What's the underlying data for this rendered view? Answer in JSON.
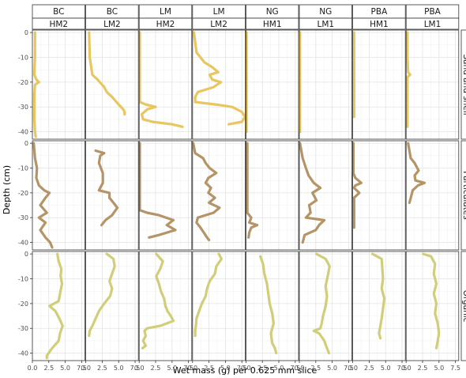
{
  "chart_data": {
    "type": "line",
    "xlabel": "Wet mass (g) per 0.625 mm slice",
    "ylabel": "Depth (cm)",
    "xlim": [
      0,
      8
    ],
    "ylim": [
      -43,
      1
    ],
    "x_ticks": [
      "0.0",
      "2.5",
      "5.0",
      "7.5"
    ],
    "y_ticks": [
      "0",
      "-10",
      "-20",
      "-30",
      "-40"
    ],
    "grid": true,
    "facet_columns": [
      {
        "site": "BC",
        "core": "HM2"
      },
      {
        "site": "BC",
        "core": "LM2"
      },
      {
        "site": "LM",
        "core": "HM2"
      },
      {
        "site": "LM",
        "core": "LM2"
      },
      {
        "site": "NG",
        "core": "HM1"
      },
      {
        "site": "NG",
        "core": "LM1"
      },
      {
        "site": "PBA",
        "core": "HM1"
      },
      {
        "site": "PBA",
        "core": "LM1"
      }
    ],
    "facet_rows": [
      {
        "label": "Sand and shell",
        "color": "#e8c660"
      },
      {
        "label": "Particulates",
        "color": "#b59467"
      },
      {
        "label": "Organic",
        "color": "#d1ce79"
      }
    ],
    "series": [
      [
        [
          [
            0,
            0.4
          ],
          [
            -10,
            0.4
          ],
          [
            -17,
            0.3
          ],
          [
            -19,
            0.6
          ],
          [
            -20,
            1.0
          ],
          [
            -21,
            0.4
          ],
          [
            -25,
            0.3
          ],
          [
            -35,
            0.3
          ],
          [
            -40,
            0.4
          ],
          [
            -42,
            0.5
          ]
        ],
        [
          [
            0,
            0.5
          ],
          [
            -10,
            0.6
          ],
          [
            -17,
            1.0
          ],
          [
            -19,
            1.8
          ],
          [
            -22,
            2.8
          ],
          [
            -24,
            3.2
          ],
          [
            -26,
            4.0
          ],
          [
            -29,
            5.0
          ],
          [
            -31,
            5.7
          ],
          [
            -32,
            5.9
          ],
          [
            -33,
            5.9
          ]
        ],
        [
          [
            0,
            0.1
          ],
          [
            -10,
            0.1
          ],
          [
            -20,
            0.1
          ],
          [
            -28,
            0.1
          ],
          [
            -29,
            1.0
          ],
          [
            -30,
            2.5
          ],
          [
            -31,
            1.2
          ],
          [
            -33,
            0.4
          ],
          [
            -35,
            0.6
          ],
          [
            -36,
            2.0
          ],
          [
            -37,
            5.0
          ],
          [
            -38,
            6.6
          ]
        ],
        [
          [
            0,
            0.2
          ],
          [
            -8,
            0.6
          ],
          [
            -12,
            1.8
          ],
          [
            -14,
            3.0
          ],
          [
            -16,
            3.9
          ],
          [
            -17,
            2.6
          ],
          [
            -19,
            3.0
          ],
          [
            -20,
            4.3
          ],
          [
            -22,
            3.2
          ],
          [
            -24,
            0.8
          ],
          [
            -26,
            0.4
          ],
          [
            -28,
            0.4
          ],
          [
            -29,
            3.5
          ],
          [
            -30,
            6.0
          ],
          [
            -32,
            7.5
          ],
          [
            -34,
            8.0
          ],
          [
            -36,
            7.5
          ],
          [
            -37,
            5.5
          ]
        ],
        [
          [
            0,
            0.1
          ],
          [
            -20,
            0.1
          ],
          [
            -40,
            0.1
          ]
        ],
        [
          [
            0,
            0.1
          ],
          [
            -20,
            0.1
          ],
          [
            -40,
            0.1
          ]
        ],
        [
          [
            0,
            0.2
          ],
          [
            -20,
            0.2
          ],
          [
            -34,
            0.2
          ]
        ],
        [
          [
            0,
            0.2
          ],
          [
            -10,
            0.2
          ],
          [
            -16,
            0.3
          ],
          [
            -17,
            0.6
          ],
          [
            -18,
            0.2
          ],
          [
            -38,
            0.2
          ]
        ]
      ],
      [
        [
          [
            0,
            0.2
          ],
          [
            -6,
            0.4
          ],
          [
            -10,
            0.7
          ],
          [
            -14,
            0.6
          ],
          [
            -17,
            1.0
          ],
          [
            -19,
            1.8
          ],
          [
            -20,
            2.6
          ],
          [
            -22,
            2.0
          ],
          [
            -25,
            1.2
          ],
          [
            -28,
            2.2
          ],
          [
            -30,
            1.0
          ],
          [
            -32,
            2.0
          ],
          [
            -35,
            1.2
          ],
          [
            -38,
            2.0
          ],
          [
            -40,
            2.7
          ],
          [
            -42,
            3.0
          ]
        ],
        [
          [
            -3,
            1.5
          ],
          [
            -4,
            2.8
          ],
          [
            -5,
            2.2
          ],
          [
            -8,
            2.0
          ],
          [
            -12,
            2.6
          ],
          [
            -16,
            2.6
          ],
          [
            -19,
            2.0
          ],
          [
            -20,
            3.6
          ],
          [
            -22,
            3.6
          ],
          [
            -24,
            4.2
          ],
          [
            -26,
            4.8
          ],
          [
            -29,
            4.0
          ],
          [
            -31,
            3.0
          ],
          [
            -33,
            2.4
          ]
        ],
        [
          [
            0,
            0.1
          ],
          [
            -10,
            0.1
          ],
          [
            -27,
            0.1
          ],
          [
            -28,
            1.2
          ],
          [
            -29,
            3.0
          ],
          [
            -31,
            5.2
          ],
          [
            -33,
            4.2
          ],
          [
            -35,
            5.5
          ],
          [
            -37,
            3.0
          ],
          [
            -38,
            1.5
          ]
        ],
        [
          [
            0,
            0.1
          ],
          [
            -4,
            0.4
          ],
          [
            -6,
            1.6
          ],
          [
            -8,
            2.0
          ],
          [
            -10,
            2.6
          ],
          [
            -12,
            3.6
          ],
          [
            -14,
            2.4
          ],
          [
            -16,
            2.0
          ],
          [
            -18,
            2.8
          ],
          [
            -20,
            2.4
          ],
          [
            -22,
            3.4
          ],
          [
            -24,
            2.5
          ],
          [
            -26,
            4.1
          ],
          [
            -28,
            3.2
          ],
          [
            -30,
            0.8
          ],
          [
            -32,
            0.6
          ],
          [
            -34,
            1.2
          ],
          [
            -36,
            1.7
          ],
          [
            -38,
            2.2
          ],
          [
            -39,
            2.5
          ]
        ],
        [
          [
            0,
            0.2
          ],
          [
            -10,
            0.2
          ],
          [
            -28,
            0.2
          ],
          [
            -30,
            0.8
          ],
          [
            -32,
            0.5
          ],
          [
            -33,
            1.7
          ],
          [
            -34,
            0.8
          ],
          [
            -36,
            0.5
          ],
          [
            -38,
            0.4
          ]
        ],
        [
          [
            0,
            0.1
          ],
          [
            -6,
            0.5
          ],
          [
            -10,
            1.0
          ],
          [
            -13,
            1.4
          ],
          [
            -16,
            2.2
          ],
          [
            -18,
            3.2
          ],
          [
            -20,
            2.0
          ],
          [
            -23,
            2.6
          ],
          [
            -25,
            1.5
          ],
          [
            -28,
            1.7
          ],
          [
            -30,
            1.0
          ],
          [
            -31,
            3.8
          ],
          [
            -33,
            3.0
          ],
          [
            -35,
            2.5
          ],
          [
            -37,
            0.8
          ],
          [
            -40,
            0.5
          ]
        ],
        [
          [
            0,
            0.1
          ],
          [
            -12,
            0.1
          ],
          [
            -14,
            0.4
          ],
          [
            -16,
            1.3
          ],
          [
            -17,
            0.4
          ],
          [
            -18,
            0.2
          ],
          [
            -20,
            1.0
          ],
          [
            -22,
            0.2
          ],
          [
            -34,
            0.2
          ]
        ],
        [
          [
            0,
            0.3
          ],
          [
            -6,
            0.7
          ],
          [
            -8,
            1.3
          ],
          [
            -11,
            1.9
          ],
          [
            -13,
            1.3
          ],
          [
            -15,
            1.4
          ],
          [
            -16,
            2.8
          ],
          [
            -17,
            1.8
          ],
          [
            -19,
            1.0
          ],
          [
            -21,
            0.8
          ],
          [
            -24,
            0.5
          ]
        ]
      ],
      [
        [
          [
            0,
            3.8
          ],
          [
            -3,
            4.0
          ],
          [
            -6,
            4.4
          ],
          [
            -9,
            4.3
          ],
          [
            -12,
            4.5
          ],
          [
            -16,
            4.2
          ],
          [
            -19,
            4.0
          ],
          [
            -21,
            2.6
          ],
          [
            -23,
            3.5
          ],
          [
            -26,
            4.1
          ],
          [
            -29,
            4.6
          ],
          [
            -32,
            4.2
          ],
          [
            -35,
            4.0
          ],
          [
            -38,
            3.0
          ],
          [
            -41,
            2.2
          ],
          [
            -42,
            2.2
          ]
        ],
        [
          [
            0,
            3.2
          ],
          [
            -2,
            4.2
          ],
          [
            -5,
            4.4
          ],
          [
            -8,
            4.0
          ],
          [
            -11,
            3.6
          ],
          [
            -14,
            4.0
          ],
          [
            -17,
            3.7
          ],
          [
            -20,
            2.8
          ],
          [
            -23,
            2.0
          ],
          [
            -26,
            1.5
          ],
          [
            -29,
            1.0
          ],
          [
            -31,
            0.6
          ],
          [
            -33,
            0.5
          ]
        ],
        [
          [
            0,
            2.6
          ],
          [
            -3,
            3.6
          ],
          [
            -6,
            3.2
          ],
          [
            -9,
            2.6
          ],
          [
            -12,
            3.0
          ],
          [
            -15,
            3.3
          ],
          [
            -18,
            3.8
          ],
          [
            -21,
            4.0
          ],
          [
            -23,
            4.3
          ],
          [
            -25,
            4.8
          ],
          [
            -27,
            5.2
          ],
          [
            -29,
            3.2
          ],
          [
            -30,
            1.2
          ],
          [
            -31,
            0.8
          ],
          [
            -33,
            1.0
          ],
          [
            -35,
            0.6
          ],
          [
            -37,
            1.0
          ],
          [
            -38,
            0.5
          ]
        ],
        [
          [
            0,
            4.0
          ],
          [
            -2,
            4.4
          ],
          [
            -5,
            3.6
          ],
          [
            -8,
            3.4
          ],
          [
            -11,
            2.6
          ],
          [
            -14,
            2.2
          ],
          [
            -17,
            2.0
          ],
          [
            -20,
            1.4
          ],
          [
            -23,
            1.0
          ],
          [
            -26,
            0.6
          ],
          [
            -29,
            0.5
          ],
          [
            -31,
            0.4
          ],
          [
            -33,
            0.4
          ]
        ],
        [
          [
            -1,
            2.2
          ],
          [
            -4,
            2.6
          ],
          [
            -8,
            2.8
          ],
          [
            -12,
            3.2
          ],
          [
            -16,
            3.4
          ],
          [
            -20,
            3.6
          ],
          [
            -24,
            4.0
          ],
          [
            -28,
            4.2
          ],
          [
            -32,
            3.8
          ],
          [
            -36,
            4.0
          ],
          [
            -38,
            4.4
          ],
          [
            -40,
            4.6
          ]
        ],
        [
          [
            0,
            2.6
          ],
          [
            -2,
            4.0
          ],
          [
            -5,
            4.6
          ],
          [
            -9,
            4.3
          ],
          [
            -13,
            4.0
          ],
          [
            -17,
            4.2
          ],
          [
            -21,
            4.0
          ],
          [
            -25,
            3.6
          ],
          [
            -28,
            3.4
          ],
          [
            -30,
            3.2
          ],
          [
            -31,
            2.2
          ],
          [
            -32,
            3.0
          ],
          [
            -35,
            3.8
          ],
          [
            -38,
            4.2
          ],
          [
            -40,
            4.5
          ]
        ],
        [
          [
            0,
            3.0
          ],
          [
            -2,
            4.4
          ],
          [
            -6,
            4.5
          ],
          [
            -10,
            4.6
          ],
          [
            -14,
            4.4
          ],
          [
            -18,
            4.8
          ],
          [
            -22,
            4.6
          ],
          [
            -26,
            4.4
          ],
          [
            -29,
            4.2
          ],
          [
            -32,
            4.0
          ],
          [
            -34,
            4.2
          ]
        ],
        [
          [
            0,
            2.6
          ],
          [
            -1,
            3.8
          ],
          [
            -4,
            4.4
          ],
          [
            -8,
            4.2
          ],
          [
            -12,
            4.6
          ],
          [
            -16,
            4.2
          ],
          [
            -20,
            4.6
          ],
          [
            -24,
            4.4
          ],
          [
            -28,
            4.8
          ],
          [
            -32,
            5.0
          ],
          [
            -35,
            4.8
          ],
          [
            -38,
            4.6
          ]
        ]
      ]
    ]
  }
}
